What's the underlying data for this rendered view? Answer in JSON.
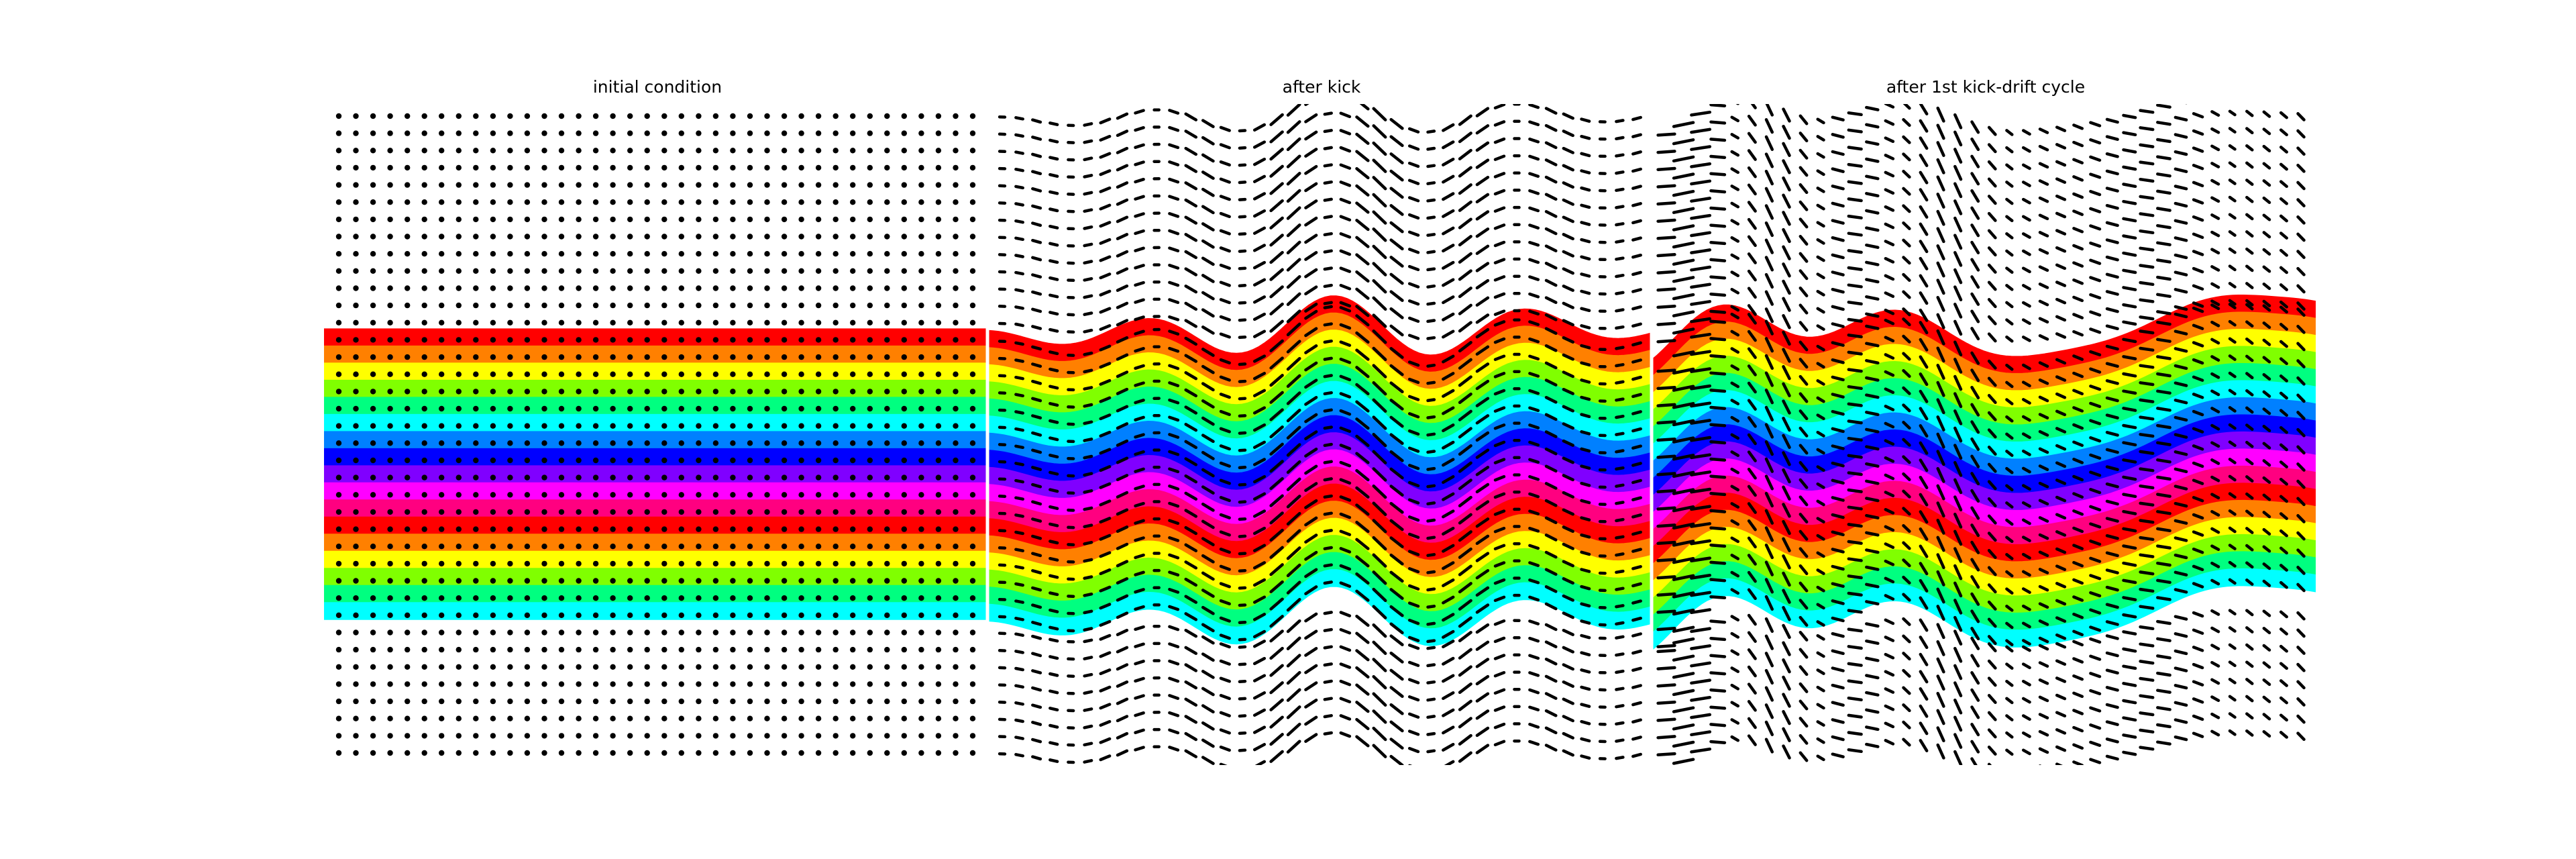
{
  "chart_data": [
    {
      "type": "scatter",
      "title": "initial condition",
      "description_layers": [
        "rainbow colour bands",
        "grid of tracer points"
      ],
      "grid": false,
      "axes_visible": false,
      "band_colors": [
        "#ff0000",
        "#ff8000",
        "#ffff00",
        "#80ff00",
        "#00ff80",
        "#00ffff",
        "#0080ff",
        "#0000ff",
        "#8000ff",
        "#ff00ff",
        "#ff0080",
        "#ff0000",
        "#ff8000",
        "#ffff00",
        "#80ff00",
        "#00ff80",
        "#00ffff"
      ],
      "bands_y_range": [
        0.34,
        0.78
      ],
      "points_grid": {
        "columns": 38,
        "rows": 38
      }
    },
    {
      "type": "scatter",
      "title": "after kick",
      "grid": false,
      "axes_visible": false,
      "band_colors": [
        "#ff0000",
        "#ff8000",
        "#ffff00",
        "#80ff00",
        "#00ff80",
        "#00ffff",
        "#0080ff",
        "#0000ff",
        "#8000ff",
        "#ff00ff",
        "#ff0080",
        "#ff0000",
        "#ff8000",
        "#ffff00",
        "#80ff00",
        "#00ff80",
        "#00ffff"
      ],
      "points_grid": {
        "columns": 38,
        "rows": 38
      }
    },
    {
      "type": "scatter",
      "title": "after 1st kick-drift cycle",
      "grid": false,
      "axes_visible": false,
      "band_colors": [
        "#ff0000",
        "#ff8000",
        "#ffff00",
        "#80ff00",
        "#00ff80",
        "#00ffff",
        "#0080ff",
        "#0000ff",
        "#8000ff",
        "#ff00ff",
        "#ff0080",
        "#ff0000",
        "#ff8000",
        "#ffff00",
        "#80ff00",
        "#00ff80",
        "#00ffff"
      ],
      "points_grid": {
        "columns": 38,
        "rows": 38
      }
    }
  ]
}
